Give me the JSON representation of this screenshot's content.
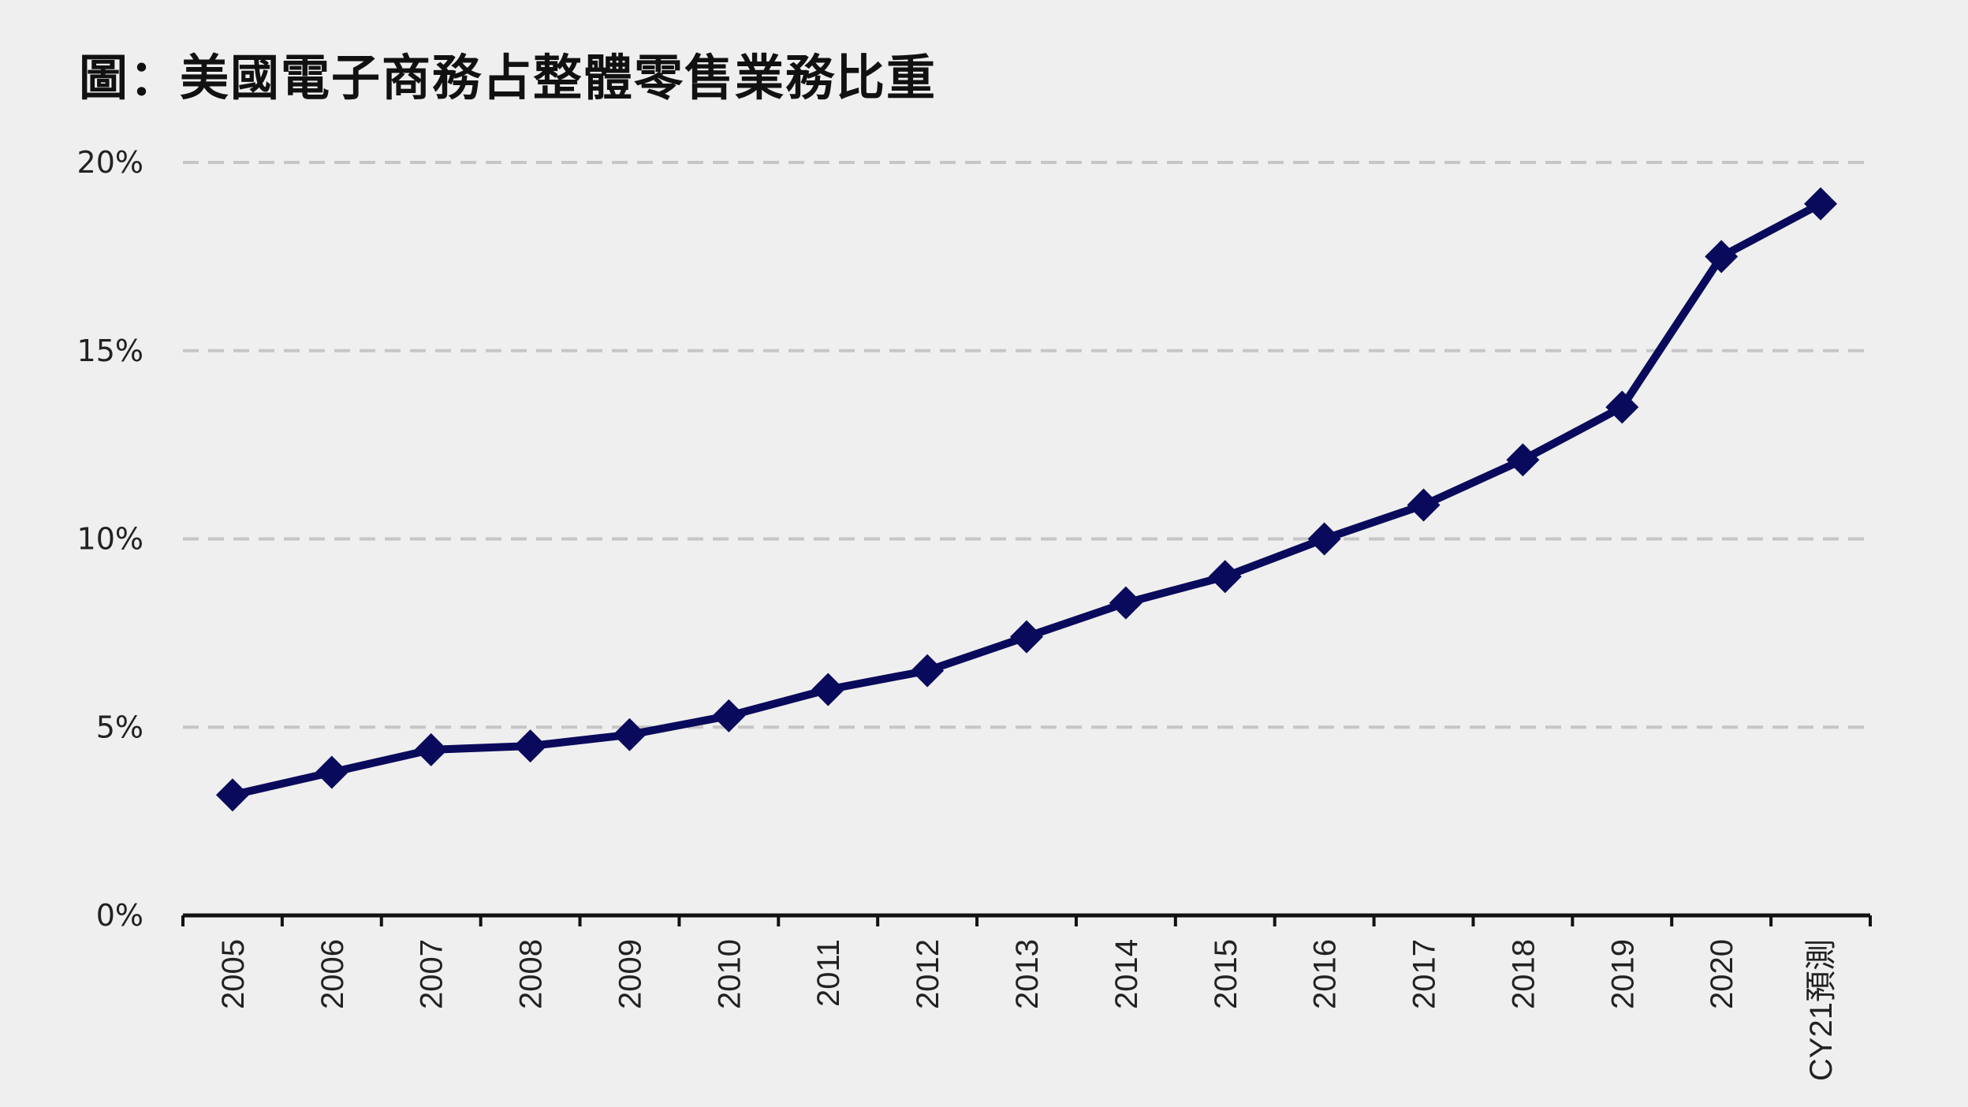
{
  "chart_data": {
    "type": "line",
    "title": "圖：美國電子商務占整體零售業務比重",
    "xlabel": "",
    "ylabel": "",
    "categories": [
      "2005",
      "2006",
      "2007",
      "2008",
      "2009",
      "2010",
      "2011",
      "2012",
      "2013",
      "2014",
      "2015",
      "2016",
      "2017",
      "2018",
      "2019",
      "2020",
      "CY21預測"
    ],
    "series": [
      {
        "name": "電子商務占整體零售業務比重",
        "values": [
          3.2,
          3.8,
          4.4,
          4.5,
          4.8,
          5.3,
          6.0,
          6.5,
          7.4,
          8.3,
          9.0,
          10.0,
          10.9,
          12.1,
          13.5,
          17.5,
          18.9
        ],
        "color": "#0a0a5c"
      }
    ],
    "ylim": [
      0,
      20
    ],
    "yticks": [
      0,
      5,
      10,
      15,
      20
    ],
    "ytick_labels": [
      "0%",
      "5%",
      "10%",
      "15%",
      "20%"
    ],
    "grid": true,
    "grid_color": "#c6c6c6",
    "axis_color": "#111111",
    "background": "#efefef",
    "legend": "none"
  }
}
